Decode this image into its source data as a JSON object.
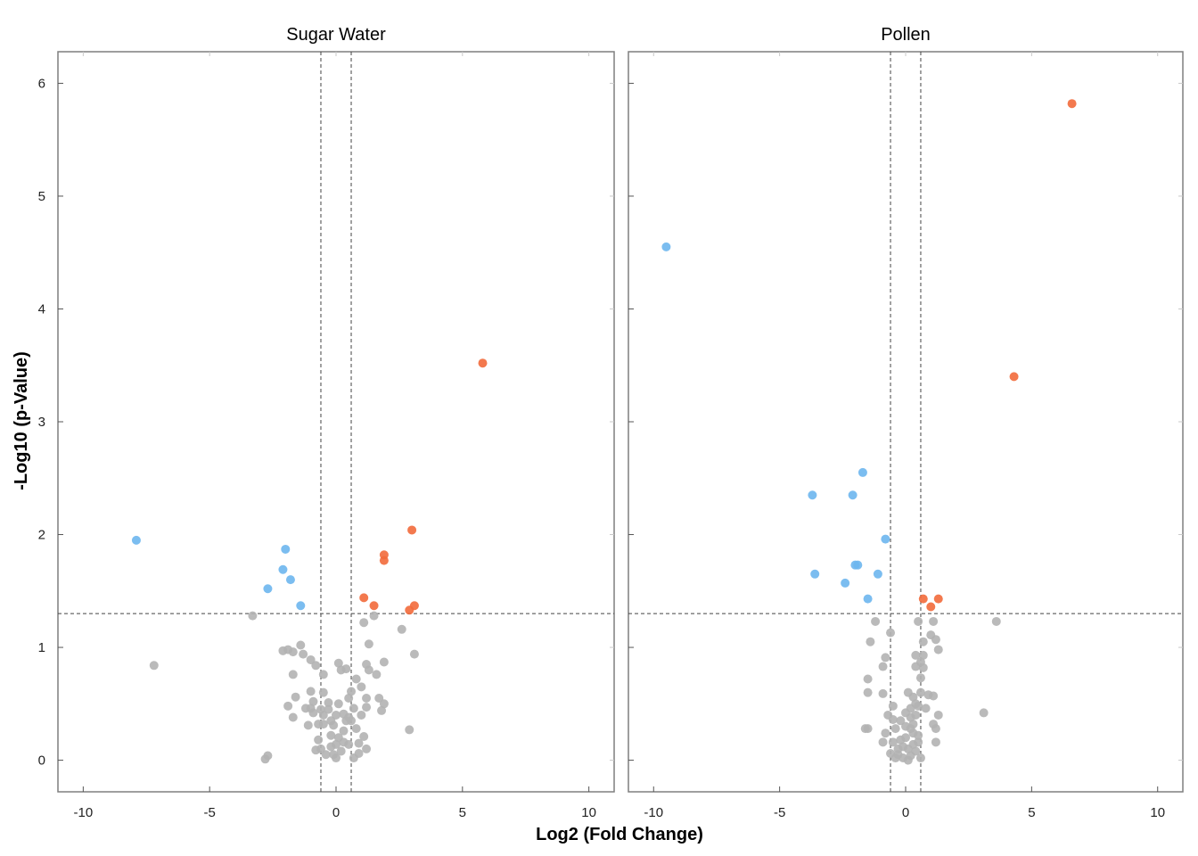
{
  "chart_data": {
    "type": "scatter",
    "xlabel": "Log2 (Fold Change)",
    "ylabel": "-Log10 (p-Value)",
    "xlim": [
      -11,
      11
    ],
    "ylim": [
      -0.28,
      6.28
    ],
    "xticks": [
      -10,
      -5,
      0,
      5,
      10
    ],
    "xtick_labels": [
      "-10",
      "-5",
      "0",
      "5",
      "10"
    ],
    "yticks": [
      0,
      1,
      2,
      3,
      4,
      5,
      6
    ],
    "ytick_labels": [
      "0",
      "1",
      "2",
      "3",
      "4",
      "5",
      "6"
    ],
    "grid": false,
    "vlines": [
      -0.6,
      0.6
    ],
    "hline": 1.3,
    "colors": {
      "up": "#f26a3b",
      "down": "#6db6ee",
      "ns": "#b3b3b3"
    },
    "panels": [
      {
        "title": "Sugar Water",
        "up": [
          [
            5.8,
            3.52
          ],
          [
            3.0,
            2.04
          ],
          [
            1.9,
            1.82
          ],
          [
            1.9,
            1.77
          ],
          [
            1.1,
            1.44
          ],
          [
            1.5,
            1.37
          ],
          [
            3.1,
            1.37
          ],
          [
            2.9,
            1.33
          ]
        ],
        "down": [
          [
            -7.9,
            1.95
          ],
          [
            -2.0,
            1.87
          ],
          [
            -2.1,
            1.69
          ],
          [
            -1.8,
            1.6
          ],
          [
            -2.7,
            1.52
          ],
          [
            -1.4,
            1.37
          ]
        ],
        "ns": [
          [
            -3.3,
            1.28
          ],
          [
            -7.2,
            0.84
          ],
          [
            -1.4,
            1.02
          ],
          [
            -2.1,
            0.97
          ],
          [
            -1.9,
            0.98
          ],
          [
            -1.7,
            0.96
          ],
          [
            -1.3,
            0.94
          ],
          [
            -1.0,
            0.89
          ],
          [
            -0.8,
            0.84
          ],
          [
            -1.7,
            0.76
          ],
          [
            -0.5,
            0.76
          ],
          [
            0.1,
            0.86
          ],
          [
            0.2,
            0.8
          ],
          [
            0.4,
            0.81
          ],
          [
            0.8,
            0.72
          ],
          [
            1.0,
            0.65
          ],
          [
            0.6,
            0.61
          ],
          [
            1.3,
            0.8
          ],
          [
            1.6,
            0.76
          ],
          [
            1.2,
            0.85
          ],
          [
            1.3,
            1.03
          ],
          [
            1.9,
            0.87
          ],
          [
            2.6,
            1.16
          ],
          [
            3.1,
            0.94
          ],
          [
            1.1,
            1.22
          ],
          [
            1.5,
            1.28
          ],
          [
            2.9,
            0.27
          ],
          [
            -2.7,
            0.04
          ],
          [
            -2.8,
            0.01
          ],
          [
            -1.6,
            0.56
          ],
          [
            -1.9,
            0.48
          ],
          [
            -1.7,
            0.38
          ],
          [
            -1.0,
            0.61
          ],
          [
            -0.9,
            0.52
          ],
          [
            -0.6,
            0.45
          ],
          [
            -0.3,
            0.51
          ],
          [
            0.3,
            0.41
          ],
          [
            0.7,
            0.46
          ],
          [
            1.2,
            0.55
          ],
          [
            1.7,
            0.55
          ],
          [
            1.9,
            0.5
          ],
          [
            1.2,
            0.47
          ],
          [
            1.8,
            0.44
          ],
          [
            -1.1,
            0.31
          ],
          [
            -0.9,
            0.42
          ],
          [
            -0.5,
            0.32
          ],
          [
            -0.7,
            0.18
          ],
          [
            -0.1,
            0.31
          ],
          [
            0.1,
            0.2
          ],
          [
            0.4,
            0.35
          ],
          [
            0.8,
            0.28
          ],
          [
            1.1,
            0.21
          ],
          [
            1.2,
            0.1
          ],
          [
            0.9,
            0.06
          ],
          [
            -0.8,
            0.09
          ],
          [
            -0.4,
            0.05
          ],
          [
            -0.2,
            0.12
          ],
          [
            0.0,
            0.02
          ],
          [
            0.2,
            0.08
          ],
          [
            0.5,
            0.14
          ],
          [
            0.7,
            0.02
          ],
          [
            -0.3,
            0.45
          ],
          [
            0.0,
            0.4
          ],
          [
            -1.0,
            0.46
          ],
          [
            0.5,
            0.38
          ],
          [
            -0.2,
            0.22
          ],
          [
            0.3,
            0.26
          ],
          [
            0.6,
            0.35
          ],
          [
            -0.5,
            0.6
          ],
          [
            0.5,
            0.55
          ],
          [
            -0.6,
            0.1
          ],
          [
            -0.1,
            0.05
          ],
          [
            0.3,
            0.16
          ],
          [
            -0.5,
            0.4
          ],
          [
            0.1,
            0.5
          ],
          [
            0.9,
            0.15
          ],
          [
            -0.2,
            0.35
          ],
          [
            1.0,
            0.4
          ],
          [
            -1.2,
            0.46
          ],
          [
            -0.7,
            0.32
          ],
          [
            0.0,
            0.14
          ]
        ]
      },
      {
        "title": "Pollen",
        "up": [
          [
            6.6,
            5.82
          ],
          [
            4.3,
            3.4
          ],
          [
            0.7,
            1.43
          ],
          [
            1.3,
            1.43
          ],
          [
            1.0,
            1.36
          ]
        ],
        "down": [
          [
            -9.5,
            4.55
          ],
          [
            -1.7,
            2.55
          ],
          [
            -3.7,
            2.35
          ],
          [
            -2.1,
            2.35
          ],
          [
            -0.8,
            1.96
          ],
          [
            -2.0,
            1.73
          ],
          [
            -1.9,
            1.73
          ],
          [
            -3.6,
            1.65
          ],
          [
            -1.1,
            1.65
          ],
          [
            -2.4,
            1.57
          ],
          [
            -1.5,
            1.43
          ]
        ],
        "ns": [
          [
            3.6,
            1.23
          ],
          [
            3.1,
            0.42
          ],
          [
            -1.2,
            1.23
          ],
          [
            0.5,
            1.23
          ],
          [
            1.1,
            1.23
          ],
          [
            -0.6,
            1.13
          ],
          [
            -1.4,
            1.05
          ],
          [
            0.7,
            1.05
          ],
          [
            1.0,
            1.11
          ],
          [
            1.3,
            0.98
          ],
          [
            1.2,
            1.07
          ],
          [
            -0.8,
            0.91
          ],
          [
            -0.9,
            0.83
          ],
          [
            0.4,
            0.93
          ],
          [
            0.7,
            0.93
          ],
          [
            0.6,
            0.87
          ],
          [
            0.4,
            0.83
          ],
          [
            0.7,
            0.82
          ],
          [
            -1.5,
            0.72
          ],
          [
            0.6,
            0.73
          ],
          [
            -1.5,
            0.6
          ],
          [
            -0.9,
            0.59
          ],
          [
            0.1,
            0.6
          ],
          [
            0.3,
            0.56
          ],
          [
            0.6,
            0.6
          ],
          [
            0.9,
            0.58
          ],
          [
            0.5,
            0.48
          ],
          [
            1.1,
            0.57
          ],
          [
            -0.5,
            0.48
          ],
          [
            0.2,
            0.46
          ],
          [
            0.8,
            0.46
          ],
          [
            1.3,
            0.4
          ],
          [
            -0.7,
            0.4
          ],
          [
            0.4,
            0.4
          ],
          [
            -0.2,
            0.35
          ],
          [
            0.3,
            0.32
          ],
          [
            1.1,
            0.32
          ],
          [
            -0.8,
            0.24
          ],
          [
            -1.6,
            0.28
          ],
          [
            -1.5,
            0.28
          ],
          [
            -0.4,
            0.28
          ],
          [
            1.2,
            0.28
          ],
          [
            1.2,
            0.16
          ],
          [
            0.3,
            0.24
          ],
          [
            -0.9,
            0.16
          ],
          [
            -0.5,
            0.16
          ],
          [
            0.0,
            0.2
          ],
          [
            0.5,
            0.16
          ],
          [
            -0.6,
            0.06
          ],
          [
            -0.3,
            0.1
          ],
          [
            0.1,
            0.1
          ],
          [
            0.4,
            0.08
          ],
          [
            -0.1,
            0.02
          ],
          [
            0.2,
            0.04
          ],
          [
            0.6,
            0.02
          ],
          [
            -0.4,
            0.02
          ],
          [
            0.0,
            0.3
          ],
          [
            -0.2,
            0.18
          ],
          [
            0.2,
            0.28
          ],
          [
            0.5,
            0.22
          ],
          [
            -0.1,
            0.12
          ],
          [
            0.3,
            0.14
          ],
          [
            -0.3,
            0.05
          ],
          [
            0.1,
            0.0
          ],
          [
            -0.5,
            0.36
          ],
          [
            0.0,
            0.42
          ],
          [
            0.4,
            0.5
          ],
          [
            0.2,
            0.38
          ]
        ]
      }
    ]
  }
}
